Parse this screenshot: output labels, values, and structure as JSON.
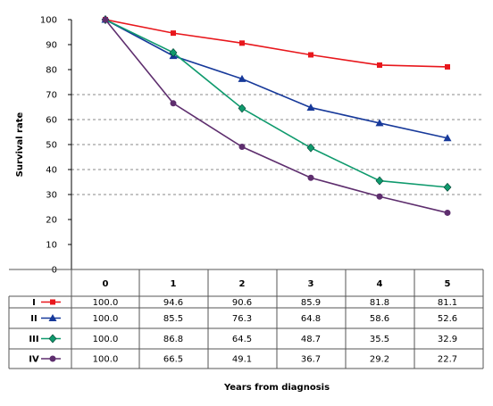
{
  "chart_data": {
    "type": "line",
    "title": "",
    "xlabel": "Years from diagnosis",
    "ylabel": "Survival rate",
    "ylim": [
      0,
      100
    ],
    "y_ticks": [
      0,
      10,
      20,
      30,
      40,
      50,
      60,
      70,
      80,
      90,
      100
    ],
    "categories": [
      "0",
      "1",
      "2",
      "3",
      "4",
      "5"
    ],
    "grid": "dashed horizontal at 30-70",
    "legend": "table rows below plot",
    "series": [
      {
        "name": "I",
        "color": "#e8171c",
        "marker": "square",
        "values": [
          100.0,
          94.6,
          90.6,
          85.9,
          81.8,
          81.1
        ],
        "labels": [
          "100.0",
          "94.6",
          "90.6",
          "85.9",
          "81.8",
          "81.1"
        ]
      },
      {
        "name": "II",
        "color": "#17399a",
        "marker": "triangle",
        "values": [
          100.0,
          85.5,
          76.3,
          64.8,
          58.6,
          52.6
        ],
        "labels": [
          "100.0",
          "85.5",
          "76.3",
          "64.8",
          "58.6",
          "52.6"
        ]
      },
      {
        "name": "III",
        "color": "#0f9a6d",
        "marker": "diamond",
        "values": [
          100.0,
          86.8,
          64.5,
          48.7,
          35.5,
          32.9
        ],
        "labels": [
          "100.0",
          "86.8",
          "64.5",
          "48.7",
          "35.5",
          "32.9"
        ]
      },
      {
        "name": "IV",
        "color": "#5e2e6e",
        "marker": "circle",
        "values": [
          100.0,
          66.5,
          49.1,
          36.7,
          29.2,
          22.7
        ],
        "labels": [
          "100.0",
          "66.5",
          "49.1",
          "36.7",
          "29.2",
          "22.7"
        ]
      }
    ]
  }
}
